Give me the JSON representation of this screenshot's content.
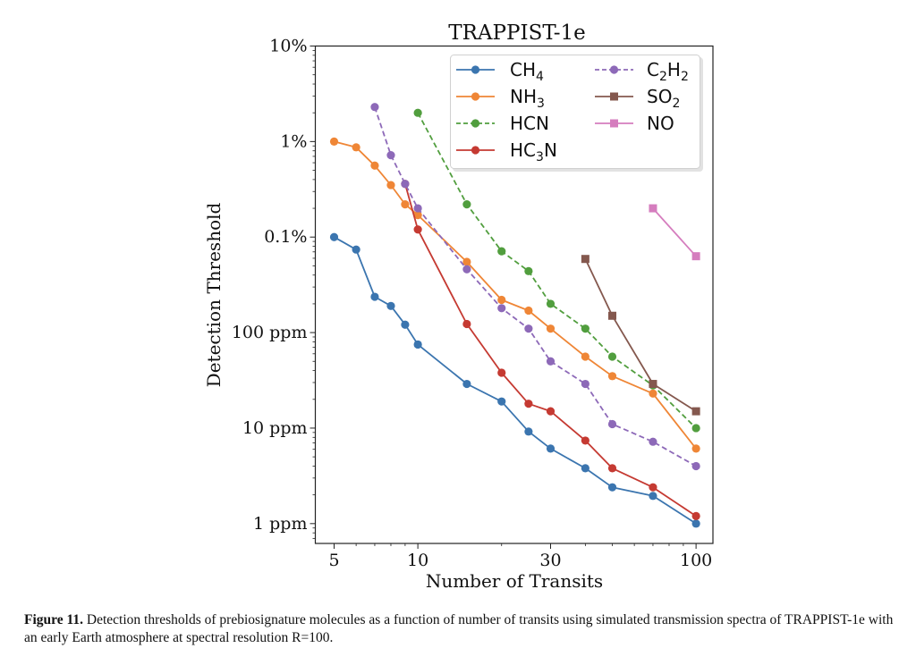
{
  "chart_data": {
    "type": "line",
    "title": "TRAPPIST-1e",
    "xlabel": "Number of Transits",
    "ylabel": "Detection Threshold",
    "xscale": "log",
    "yscale": "log",
    "y_units": "ppm",
    "xlim": [
      4.28,
      115
    ],
    "ylim": [
      0.62,
      100000
    ],
    "x_ticks": [
      {
        "value": 5,
        "label": "5"
      },
      {
        "value": 10,
        "label": "10"
      },
      {
        "value": 30,
        "label": "30"
      },
      {
        "value": 100,
        "label": "100"
      }
    ],
    "y_ticks": [
      {
        "value": 100000,
        "label": "10%"
      },
      {
        "value": 10000,
        "label": "1%"
      },
      {
        "value": 1000,
        "label": "0.1%"
      },
      {
        "value": 100,
        "label": "100 ppm"
      },
      {
        "value": 10,
        "label": "10 ppm"
      },
      {
        "value": 1,
        "label": "1 ppm"
      }
    ],
    "grid": false,
    "legend_position": "top-right",
    "legend_columns": 2,
    "series": [
      {
        "name": "CH4",
        "label_base": "CH",
        "label_sub": "4",
        "label_tail": "",
        "color": "#3b75af",
        "dashed": false,
        "marker": "circle",
        "x": [
          5,
          6,
          7,
          8,
          9,
          10,
          15,
          20,
          25,
          30,
          40,
          50,
          70,
          100
        ],
        "y": [
          1000,
          740,
          237,
          190,
          121,
          75,
          29,
          19,
          9.2,
          6.1,
          3.8,
          2.4,
          1.95,
          1.0
        ]
      },
      {
        "name": "NH3",
        "label_base": "NH",
        "label_sub": "3",
        "label_tail": "",
        "color": "#ef8636",
        "dashed": false,
        "marker": "circle",
        "x": [
          5,
          6,
          7,
          8,
          9,
          10,
          15,
          20,
          25,
          30,
          40,
          50,
          70,
          100
        ],
        "y": [
          10000,
          8700,
          5600,
          3500,
          2200,
          1700,
          550,
          220,
          170,
          110,
          56,
          35,
          23,
          6.1
        ]
      },
      {
        "name": "HCN",
        "label_base": "HCN",
        "label_sub": "",
        "label_tail": "",
        "color": "#519e3e",
        "dashed": true,
        "marker": "circle",
        "x": [
          10,
          15,
          20,
          25,
          30,
          40,
          50,
          70,
          100
        ],
        "y": [
          20000,
          2200,
          710,
          440,
          200,
          110,
          56,
          28,
          10
        ]
      },
      {
        "name": "HC3N",
        "label_base": "HC",
        "label_sub": "3",
        "label_tail": "N",
        "color": "#c53a32",
        "dashed": false,
        "marker": "circle",
        "x": [
          9,
          10,
          15,
          20,
          25,
          30,
          40,
          50,
          70,
          100
        ],
        "y": [
          3600,
          1200,
          123,
          38,
          18,
          15,
          7.4,
          3.8,
          2.4,
          1.2
        ]
      },
      {
        "name": "C2H2",
        "label_base": "C",
        "label_sub": "2",
        "label_tail": "H",
        "label_sub2": "2",
        "color": "#8d69b8",
        "dashed": true,
        "marker": "circle",
        "x": [
          7,
          8,
          9,
          10,
          15,
          20,
          25,
          30,
          40,
          50,
          70,
          100
        ],
        "y": [
          23000,
          7200,
          3600,
          2000,
          460,
          180,
          110,
          50,
          29,
          11,
          7.2,
          4.0
        ]
      },
      {
        "name": "SO2",
        "label_base": "SO",
        "label_sub": "2",
        "label_tail": "",
        "color": "#84584e",
        "dashed": false,
        "marker": "square",
        "x": [
          40,
          50,
          70,
          100
        ],
        "y": [
          590,
          150,
          29,
          15
        ]
      },
      {
        "name": "NO",
        "label_base": "NO",
        "label_sub": "",
        "label_tail": "",
        "color": "#d57dbe",
        "dashed": false,
        "marker": "square",
        "x": [
          70,
          100
        ],
        "y": [
          2000,
          630
        ]
      }
    ]
  },
  "caption": {
    "label": "Figure 11.",
    "text": "Detection thresholds of prebiosignature molecules as a function of number of transits using simulated transmission spectra of TRAPPIST-1e with an early Earth atmosphere at spectral resolution R=100."
  }
}
